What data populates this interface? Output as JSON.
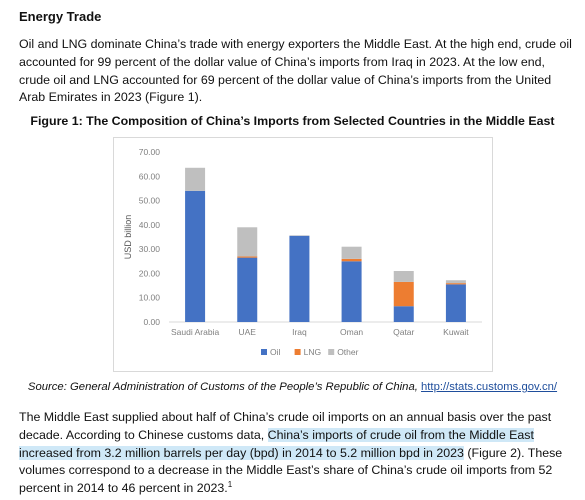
{
  "section": {
    "heading": "Energy Trade",
    "para1": "Oil and LNG dominate China’s trade with energy exporters the Middle East. At the high end, crude oil accounted for 99 percent of the dollar value of China’s imports from Iraq in 2023. At the low end, crude oil and LNG accounted for 69 percent of the dollar value of China’s imports from the United Arab Emirates in 2023 (Figure 1)."
  },
  "figure": {
    "title": "Figure 1: The Composition of China’s Imports from Selected Countries in the Middle East",
    "source_prefix": "Source: General Administration of Customs of the People’s Republic of China,",
    "source_link": "http://stats.customs.gov.cn/"
  },
  "chart_data": {
    "type": "bar",
    "stacked": true,
    "title": "",
    "xlabel": "",
    "ylabel": "USD billion",
    "ylim": [
      0,
      70
    ],
    "yticks": [
      "0.00",
      "10.00",
      "20.00",
      "30.00",
      "40.00",
      "50.00",
      "60.00",
      "70.00"
    ],
    "grid": false,
    "legend_position": "bottom",
    "categories": [
      "Saudi Arabia",
      "UAE",
      "Iraq",
      "Oman",
      "Qatar",
      "Kuwait"
    ],
    "series": [
      {
        "name": "Oil",
        "color": "#4472c4",
        "values": [
          54.0,
          26.5,
          35.5,
          25.0,
          6.5,
          15.5
        ]
      },
      {
        "name": "LNG",
        "color": "#ed7d31",
        "values": [
          0.0,
          0.5,
          0.0,
          1.0,
          10.0,
          0.5
        ]
      },
      {
        "name": "Other",
        "color": "#bfbfbf",
        "values": [
          9.5,
          12.0,
          0.2,
          5.0,
          4.5,
          1.2
        ]
      }
    ]
  },
  "after": {
    "part1": "The Middle East supplied about half of China’s crude oil imports on an annual basis over the past decade. According to Chinese customs data, ",
    "highlight": "China’s imports of crude oil from the Middle East increased from 3.2 million barrels per day (bpd) in 2014 to 5.2 million bpd in 2023",
    "part2": " (Figure 2). These volumes correspond to a decrease in the Middle East’s share of China’s crude oil imports from 52 percent in 2014 to 46 percent in 2023.",
    "footnote": "1"
  }
}
